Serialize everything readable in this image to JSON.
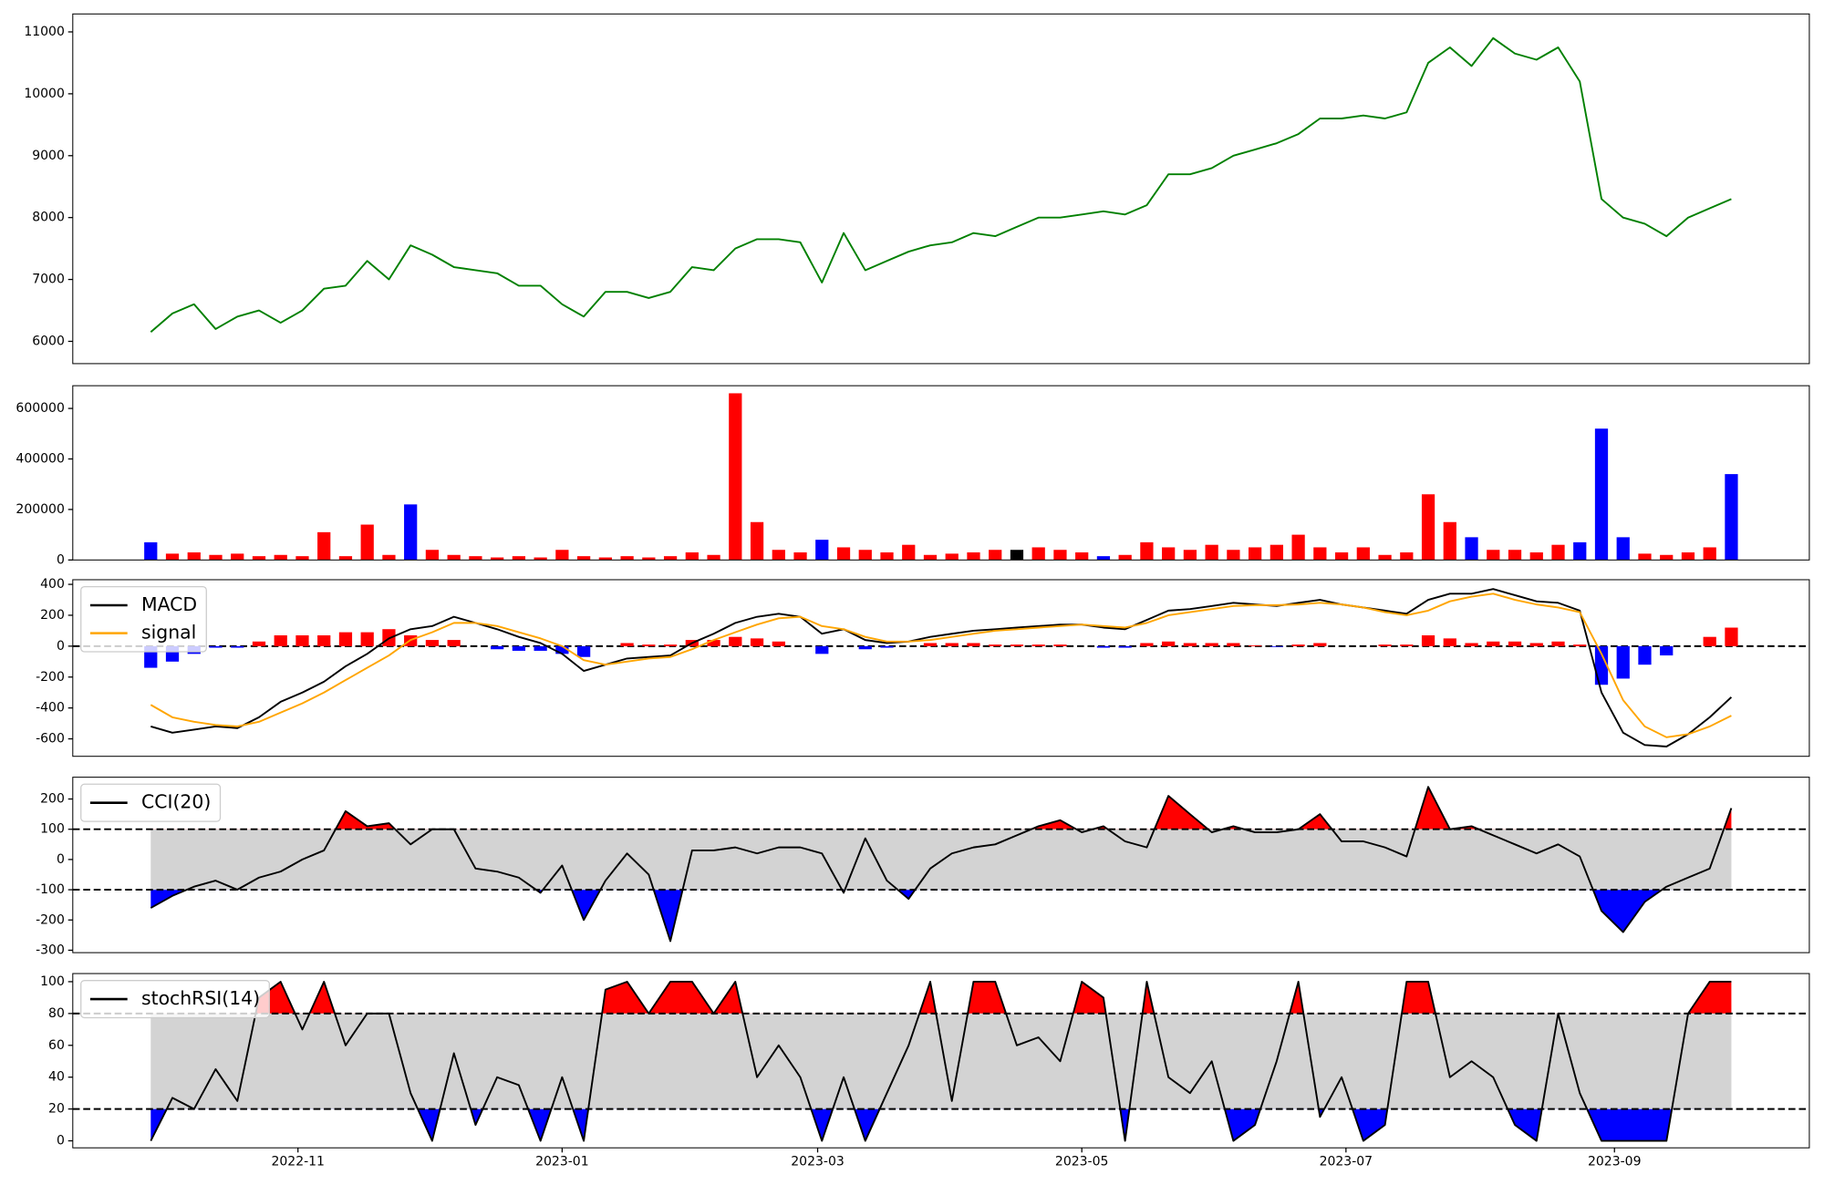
{
  "chart_data": {
    "type": "multi-panel",
    "x": [
      -34,
      -29,
      -24,
      -19,
      -14,
      -9,
      -4,
      1,
      6,
      11,
      16,
      21,
      26,
      31,
      36,
      41,
      46,
      51,
      56,
      61,
      66,
      71,
      76,
      81,
      86,
      91,
      96,
      101,
      106,
      111,
      116,
      121,
      126,
      131,
      136,
      141,
      146,
      151,
      156,
      161,
      166,
      171,
      176,
      181,
      186,
      191,
      196,
      201,
      206,
      211,
      216,
      221,
      226,
      231,
      236,
      241,
      246,
      251,
      256,
      261,
      266,
      271,
      276,
      281,
      286,
      291,
      296,
      301,
      306,
      311,
      316,
      321,
      326,
      331
    ],
    "xlim": [
      -52,
      349
    ],
    "xticks": [
      {
        "value": 0,
        "label": "2022-11"
      },
      {
        "value": 61,
        "label": "2023-01"
      },
      {
        "value": 120,
        "label": "2023-03"
      },
      {
        "value": 181,
        "label": "2023-05"
      },
      {
        "value": 242,
        "label": "2023-07"
      },
      {
        "value": 304,
        "label": "2023-09"
      }
    ],
    "panels": [
      {
        "type": "line",
        "ylim": [
          5640,
          11290
        ],
        "yticks": [
          6000,
          7000,
          8000,
          9000,
          10000,
          11000
        ],
        "series": [
          {
            "color": "green",
            "values": [
              6150,
              6450,
              6600,
              6200,
              6400,
              6500,
              6300,
              6500,
              6850,
              6900,
              7300,
              7000,
              7550,
              7400,
              7200,
              7150,
              7100,
              6900,
              6900,
              6600,
              6400,
              6800,
              6800,
              6700,
              6800,
              7200,
              7150,
              7500,
              7650,
              7650,
              7600,
              6950,
              7750,
              7150,
              7300,
              7450,
              7550,
              7600,
              7750,
              7700,
              7850,
              8000,
              8000,
              8050,
              8100,
              8050,
              8200,
              8700,
              8700,
              8800,
              9000,
              9100,
              9200,
              9350,
              9600,
              9600,
              9650,
              9600,
              9700,
              10500,
              10750,
              10450,
              10900,
              10650,
              10550,
              10750,
              10200,
              8300,
              8000,
              7900,
              7700,
              8000,
              8150,
              8300
            ]
          }
        ]
      },
      {
        "type": "bar",
        "ylim": [
          0,
          690000
        ],
        "yticks": [
          0,
          200000,
          400000,
          600000
        ],
        "values": [
          70000,
          25000,
          30000,
          20000,
          25000,
          15000,
          20000,
          15000,
          110000,
          15000,
          140000,
          20000,
          220000,
          40000,
          20000,
          15000,
          10000,
          15000,
          10000,
          40000,
          15000,
          10000,
          15000,
          10000,
          15000,
          30000,
          20000,
          660000,
          150000,
          40000,
          30000,
          80000,
          50000,
          40000,
          30000,
          60000,
          20000,
          25000,
          30000,
          40000,
          40000,
          50000,
          40000,
          30000,
          15000,
          20000,
          70000,
          50000,
          40000,
          60000,
          40000,
          50000,
          60000,
          100000,
          50000,
          30000,
          50000,
          20000,
          30000,
          260000,
          150000,
          90000,
          40000,
          40000,
          30000,
          60000,
          70000,
          520000,
          90000,
          25000,
          20000,
          30000,
          50000,
          340000
        ],
        "colors": [
          "blue",
          "red",
          "red",
          "red",
          "red",
          "red",
          "red",
          "red",
          "red",
          "red",
          "red",
          "red",
          "blue",
          "red",
          "red",
          "red",
          "red",
          "red",
          "red",
          "red",
          "red",
          "red",
          "red",
          "red",
          "red",
          "red",
          "red",
          "red",
          "red",
          "red",
          "red",
          "blue",
          "red",
          "red",
          "red",
          "red",
          "red",
          "red",
          "red",
          "red",
          "black",
          "red",
          "red",
          "red",
          "blue",
          "red",
          "red",
          "red",
          "red",
          "red",
          "red",
          "red",
          "red",
          "red",
          "red",
          "red",
          "red",
          "red",
          "red",
          "red",
          "red",
          "blue",
          "red",
          "red",
          "red",
          "red",
          "blue",
          "blue",
          "blue",
          "red",
          "red",
          "red",
          "red",
          "blue"
        ]
      },
      {
        "type": "macd",
        "ylim": [
          -713,
          430
        ],
        "yticks": [
          -600,
          -400,
          -200,
          0,
          200,
          400
        ],
        "hlines": [
          0
        ],
        "legend": "upper left",
        "histogram": {
          "pos_color": "red",
          "neg_color": "blue",
          "values": [
            -140,
            -100,
            -50,
            -10,
            -10,
            30,
            70,
            70,
            70,
            90,
            90,
            110,
            70,
            40,
            40,
            0,
            -20,
            -30,
            -30,
            -50,
            -70,
            0,
            20,
            10,
            10,
            40,
            40,
            60,
            50,
            30,
            0,
            -50,
            0,
            -20,
            -10,
            0,
            20,
            20,
            20,
            10,
            10,
            10,
            10,
            0,
            -10,
            -10,
            20,
            30,
            20,
            20,
            20,
            5,
            -5,
            10,
            20,
            0,
            0,
            10,
            10,
            70,
            50,
            20,
            30,
            30,
            20,
            30,
            10,
            -250,
            -210,
            -120,
            -60,
            0,
            60,
            120
          ]
        },
        "series": [
          {
            "name": "MACD",
            "color": "black",
            "values": [
              -520,
              -560,
              -540,
              -520,
              -530,
              -460,
              -360,
              -300,
              -230,
              -130,
              -50,
              50,
              110,
              130,
              190,
              150,
              110,
              60,
              20,
              -50,
              -160,
              -120,
              -80,
              -70,
              -60,
              20,
              80,
              150,
              190,
              210,
              190,
              80,
              110,
              40,
              20,
              30,
              60,
              80,
              100,
              110,
              120,
              130,
              140,
              140,
              120,
              110,
              170,
              230,
              240,
              260,
              280,
              270,
              260,
              280,
              300,
              270,
              250,
              230,
              210,
              300,
              340,
              340,
              370,
              330,
              290,
              280,
              230,
              -300,
              -560,
              -640,
              -650,
              -570,
              -460,
              -330
            ]
          },
          {
            "name": "signal",
            "color": "orange",
            "values": [
              -380,
              -460,
              -490,
              -510,
              -520,
              -490,
              -430,
              -370,
              -300,
              -220,
              -140,
              -60,
              40,
              90,
              150,
              150,
              130,
              90,
              50,
              0,
              -90,
              -120,
              -100,
              -80,
              -70,
              -20,
              40,
              90,
              140,
              180,
              190,
              130,
              110,
              60,
              30,
              30,
              40,
              60,
              80,
              100,
              110,
              120,
              130,
              140,
              130,
              120,
              150,
              200,
              220,
              240,
              260,
              265,
              265,
              270,
              280,
              270,
              250,
              220,
              200,
              230,
              290,
              320,
              340,
              300,
              270,
              250,
              220,
              -50,
              -350,
              -520,
              -590,
              -570,
              -520,
              -450
            ]
          }
        ]
      },
      {
        "type": "oscillator",
        "ylim": [
          -308,
          272
        ],
        "yticks": [
          -300,
          -200,
          -100,
          0,
          100,
          200
        ],
        "hlines": [
          -100,
          100
        ],
        "band_color": "lightgray",
        "upper_color": "red",
        "lower_color": "blue",
        "legend": "upper left",
        "series": [
          {
            "name": "CCI(20)",
            "color": "black",
            "values": [
              -160,
              -120,
              -90,
              -70,
              -100,
              -60,
              -40,
              0,
              30,
              160,
              110,
              120,
              50,
              100,
              100,
              -30,
              -40,
              -60,
              -110,
              -20,
              -200,
              -70,
              20,
              -50,
              -270,
              30,
              30,
              40,
              20,
              40,
              40,
              20,
              -110,
              70,
              -70,
              -130,
              -30,
              20,
              40,
              50,
              80,
              110,
              130,
              90,
              110,
              60,
              40,
              210,
              150,
              90,
              110,
              90,
              90,
              100,
              150,
              60,
              60,
              40,
              10,
              240,
              100,
              110,
              80,
              50,
              20,
              50,
              10,
              -170,
              -240,
              -140,
              -90,
              -60,
              -30,
              170
            ]
          }
        ]
      },
      {
        "type": "oscillator",
        "ylim": [
          -4.4,
          105.1
        ],
        "yticks": [
          0,
          20,
          40,
          60,
          80,
          100
        ],
        "hlines": [
          20,
          80
        ],
        "band_color": "lightgray",
        "upper_color": "red",
        "lower_color": "blue",
        "legend": "upper left",
        "series": [
          {
            "name": "stochRSI(14)",
            "color": "black",
            "values": [
              0,
              27,
              20,
              45,
              25,
              90,
              100,
              70,
              100,
              60,
              80,
              80,
              30,
              0,
              55,
              10,
              40,
              35,
              0,
              40,
              0,
              95,
              100,
              80,
              100,
              100,
              80,
              100,
              40,
              60,
              40,
              0,
              40,
              0,
              30,
              60,
              100,
              25,
              100,
              100,
              60,
              65,
              50,
              100,
              90,
              0,
              100,
              40,
              30,
              50,
              0,
              10,
              50,
              100,
              15,
              40,
              0,
              10,
              100,
              100,
              40,
              50,
              40,
              10,
              0,
              80,
              30,
              0,
              0,
              0,
              0,
              80,
              100,
              100
            ]
          }
        ]
      }
    ]
  }
}
